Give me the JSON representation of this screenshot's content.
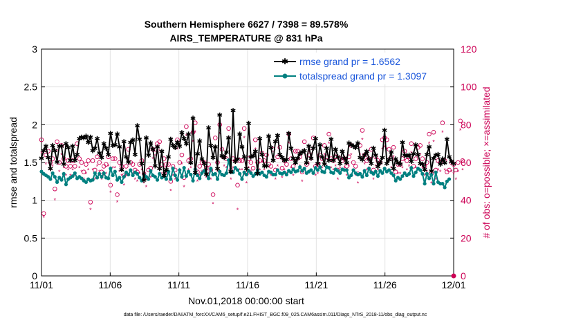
{
  "chart_data": {
    "type": "line",
    "title": "Southern Hemisphere 6627 / 7398 = 89.578%",
    "subtitle": "AIRS_TEMPERATURE @ 831 hPa",
    "xlabel": "Nov.01,2018 00:00:00 start",
    "ylabel": "rmse and totalspread",
    "y2label": "# of obs: o=possible; ×=assimilated",
    "footnote": "data file: /Users/raeder/DAI/ATM_forcXX/CAM6_setup/f.e21.FHIST_BGC.f09_025.CAM6assim.011/Diags_NTrS_2018-11/obs_diag_output.nc",
    "x_tick_labels": [
      "11/01",
      "11/06",
      "11/11",
      "11/16",
      "11/21",
      "11/26",
      "12/01"
    ],
    "x_tick_days": [
      0,
      5,
      10,
      15,
      20,
      25,
      30
    ],
    "ylim": [
      0,
      3
    ],
    "yticks": [
      "0",
      "0.5",
      "1",
      "1.5",
      "2",
      "2.5",
      "3"
    ],
    "y2lim": [
      0,
      120
    ],
    "y2ticks": [
      "0",
      "20",
      "40",
      "60",
      "80",
      "100",
      "120"
    ],
    "grid": true,
    "legend_position": "top-right",
    "colors": {
      "rmse": "#000000",
      "spread": "#008080",
      "obs": "#cc0055",
      "legend_text": "#1a56db"
    },
    "series": [
      {
        "name": "rmse grand pr = 1.6562",
        "axis": "left",
        "values": [
          1.56,
          1.66,
          1.72,
          1.57,
          1.42,
          1.73,
          1.66,
          1.51,
          1.72,
          1.72,
          1.48,
          1.75,
          1.7,
          1.53,
          1.72,
          1.53,
          1.61,
          1.82,
          1.84,
          1.83,
          1.85,
          1.77,
          1.84,
          1.66,
          1.69,
          1.82,
          1.63,
          1.57,
          1.75,
          1.69,
          1.61,
          1.89,
          1.73,
          1.74,
          1.88,
          1.71,
          1.41,
          1.78,
          1.58,
          1.51,
          1.77,
          1.8,
          1.61,
          1.99,
          1.81,
          1.49,
          1.27,
          1.83,
          1.6,
          1.76,
          1.68,
          1.46,
          1.71,
          1.42,
          1.65,
          1.33,
          1.41,
          1.58,
          1.81,
          1.73,
          1.7,
          1.77,
          1.72,
          1.9,
          1.82,
          1.75,
          1.88,
          1.5,
          2.09,
          1.37,
          1.62,
          1.79,
          1.55,
          1.49,
          1.35,
          1.96,
          1.73,
          1.57,
          1.71,
          1.42,
          2.13,
          1.59,
          1.57,
          1.64,
          1.83,
          1.38,
          2.19,
          1.52,
          1.55,
          1.88,
          1.71,
          1.58,
          1.42,
          2.02,
          1.58,
          1.59,
          1.65,
          1.36,
          1.82,
          1.61,
          1.46,
          1.46,
          1.85,
          1.7,
          1.53,
          1.78,
          1.86,
          1.61,
          1.57,
          1.53,
          1.54,
          1.89,
          1.69,
          1.56,
          1.5,
          1.56,
          1.62,
          1.64,
          1.66,
          1.5,
          1.72,
          1.56,
          1.69,
          1.82,
          1.49,
          1.74,
          1.58,
          1.48,
          1.69,
          1.53,
          1.81,
          1.53,
          1.68,
          1.58,
          1.49,
          1.65,
          1.56,
          1.5,
          1.76,
          1.74,
          1.72,
          1.7,
          1.76,
          1.57,
          1.54,
          1.6,
          1.65,
          1.55,
          1.49,
          1.69,
          1.6,
          1.45,
          1.5,
          1.57,
          1.93,
          1.49,
          1.54,
          1.64,
          1.42,
          1.55,
          1.5,
          1.48,
          1.77,
          1.6,
          1.59,
          1.6,
          1.52,
          1.62,
          1.74,
          1.61,
          1.49,
          1.48,
          1.41,
          1.61,
          1.71,
          1.39,
          1.56,
          1.6,
          1.61,
          1.48,
          1.55,
          1.5,
          1.81,
          1.58,
          1.52,
          1.49
        ]
      },
      {
        "name": "totalspread grand pr = 1.3097",
        "axis": "left",
        "values": [
          1.38,
          1.35,
          1.33,
          1.31,
          1.28,
          1.36,
          1.31,
          1.24,
          1.3,
          1.27,
          1.35,
          1.21,
          1.28,
          1.3,
          1.32,
          1.36,
          1.29,
          1.31,
          1.29,
          1.26,
          1.24,
          1.28,
          1.26,
          1.27,
          1.36,
          1.3,
          1.35,
          1.31,
          1.36,
          1.3,
          1.29,
          1.42,
          1.33,
          1.38,
          1.27,
          1.3,
          1.24,
          1.31,
          1.37,
          1.34,
          1.4,
          1.33,
          1.37,
          1.35,
          1.3,
          1.26,
          1.34,
          1.31,
          1.28,
          1.39,
          1.33,
          1.31,
          1.27,
          1.35,
          1.3,
          1.32,
          1.28,
          1.38,
          1.28,
          1.42,
          1.33,
          1.27,
          1.4,
          1.31,
          1.43,
          1.32,
          1.38,
          1.34,
          1.26,
          1.41,
          1.33,
          1.29,
          1.36,
          1.39,
          1.35,
          1.29,
          1.42,
          1.34,
          1.35,
          1.28,
          1.38,
          1.34,
          1.33,
          1.36,
          1.53,
          1.38,
          1.37,
          1.43,
          1.4,
          1.35,
          1.28,
          1.37,
          1.34,
          1.39,
          1.36,
          1.32,
          1.35,
          1.4,
          1.35,
          1.37,
          1.33,
          1.31,
          1.38,
          1.37,
          1.34,
          1.34,
          1.4,
          1.36,
          1.35,
          1.37,
          1.34,
          1.39,
          1.37,
          1.41,
          1.38,
          1.39,
          1.44,
          1.39,
          1.42,
          1.36,
          1.38,
          1.4,
          1.36,
          1.43,
          1.4,
          1.44,
          1.38,
          1.37,
          1.44,
          1.43,
          1.37,
          1.36,
          1.41,
          1.39,
          1.36,
          1.41,
          1.4,
          1.4,
          1.3,
          1.33,
          1.4,
          1.36,
          1.34,
          1.35,
          1.31,
          1.39,
          1.33,
          1.42,
          1.37,
          1.35,
          1.38,
          1.32,
          1.39,
          1.36,
          1.42,
          1.38,
          1.4,
          1.36,
          1.33,
          1.26,
          1.3,
          1.28,
          1.32,
          1.36,
          1.33,
          1.35,
          1.43,
          1.32,
          1.37,
          1.42,
          1.4,
          1.35,
          1.22,
          1.35,
          1.29,
          1.34,
          1.22,
          1.37,
          1.24,
          1.22,
          1.22,
          1.17,
          1.25,
          1.28
        ]
      },
      {
        "name": "obs possible",
        "axis": "right",
        "marker": "o",
        "values": [
          72,
          33,
          64,
          66,
          60,
          62,
          46,
          71,
          60,
          69,
          62,
          58,
          61,
          58,
          61,
          58,
          70,
          62,
          60,
          55,
          59,
          61,
          39,
          61,
          56,
          63,
          60,
          55,
          58,
          59,
          63,
          48,
          62,
          62,
          43,
          60,
          58,
          53,
          58,
          67,
          60,
          59,
          56,
          55,
          59,
          61,
          54,
          52,
          56,
          57,
          67,
          65,
          70,
          71,
          59,
          62,
          59,
          59,
          50,
          58,
          56,
          72,
          60,
          64,
          52,
          79,
          61,
          62,
          76,
          81,
          55,
          58,
          60,
          60,
          57,
          59,
          56,
          43,
          73,
          60,
          80,
          67,
          63,
          62,
          78,
          56,
          62,
          61,
          48,
          61,
          61,
          78,
          54,
          62,
          60,
          57,
          72,
          60,
          61,
          65,
          61,
          64,
          59,
          58,
          67,
          56,
          63,
          68,
          57,
          61,
          59,
          75,
          62,
          58,
          66,
          66,
          63,
          55,
          71,
          59,
          64,
          66,
          73,
          58,
          59,
          64,
          62,
          69,
          63,
          75,
          62,
          61,
          63,
          56,
          62,
          61,
          62,
          58,
          63,
          69,
          60,
          58,
          54,
          69,
          77,
          64,
          61,
          62,
          67,
          56,
          63,
          61,
          60,
          72,
          73,
          72,
          67,
          62,
          68,
          55,
          59,
          59,
          62,
          66,
          61,
          63,
          70,
          58,
          62,
          68,
          69,
          62,
          58,
          60,
          75,
          54,
          76,
          56,
          61,
          60,
          81,
          61,
          55,
          56,
          60,
          59,
          56,
          60,
          82,
          61
        ]
      },
      {
        "name": "obs assimilated",
        "axis": "right",
        "marker": "x",
        "values": [
          65,
          31,
          59,
          62,
          56,
          58,
          40,
          66,
          55,
          64,
          57,
          53,
          56,
          53,
          56,
          53,
          65,
          57,
          55,
          51,
          54,
          56,
          35,
          56,
          51,
          58,
          55,
          51,
          53,
          54,
          58,
          44,
          57,
          57,
          39,
          55,
          53,
          48,
          53,
          62,
          55,
          54,
          51,
          50,
          54,
          56,
          49,
          47,
          51,
          52,
          62,
          60,
          65,
          66,
          54,
          57,
          54,
          54,
          45,
          53,
          51,
          67,
          55,
          59,
          47,
          74,
          56,
          57,
          71,
          76,
          50,
          53,
          55,
          55,
          52,
          54,
          51,
          38,
          68,
          55,
          75,
          62,
          58,
          57,
          73,
          51,
          57,
          56,
          35,
          56,
          56,
          73,
          49,
          57,
          55,
          52,
          67,
          55,
          56,
          60,
          56,
          59,
          54,
          53,
          62,
          51,
          58,
          63,
          52,
          56,
          54,
          70,
          57,
          53,
          61,
          61,
          58,
          50,
          66,
          54,
          59,
          61,
          68,
          53,
          54,
          59,
          57,
          64,
          58,
          70,
          57,
          56,
          58,
          51,
          57,
          56,
          57,
          53,
          58,
          64,
          55,
          53,
          49,
          64,
          72,
          59,
          56,
          57,
          62,
          51,
          58,
          56,
          55,
          67,
          68,
          67,
          62,
          57,
          63,
          50,
          54,
          54,
          57,
          61,
          56,
          58,
          65,
          53,
          57,
          63,
          64,
          57,
          53,
          55,
          70,
          49,
          71,
          51,
          56,
          55,
          76,
          56,
          50,
          51,
          55,
          54,
          51,
          55,
          77,
          56
        ]
      }
    ]
  }
}
